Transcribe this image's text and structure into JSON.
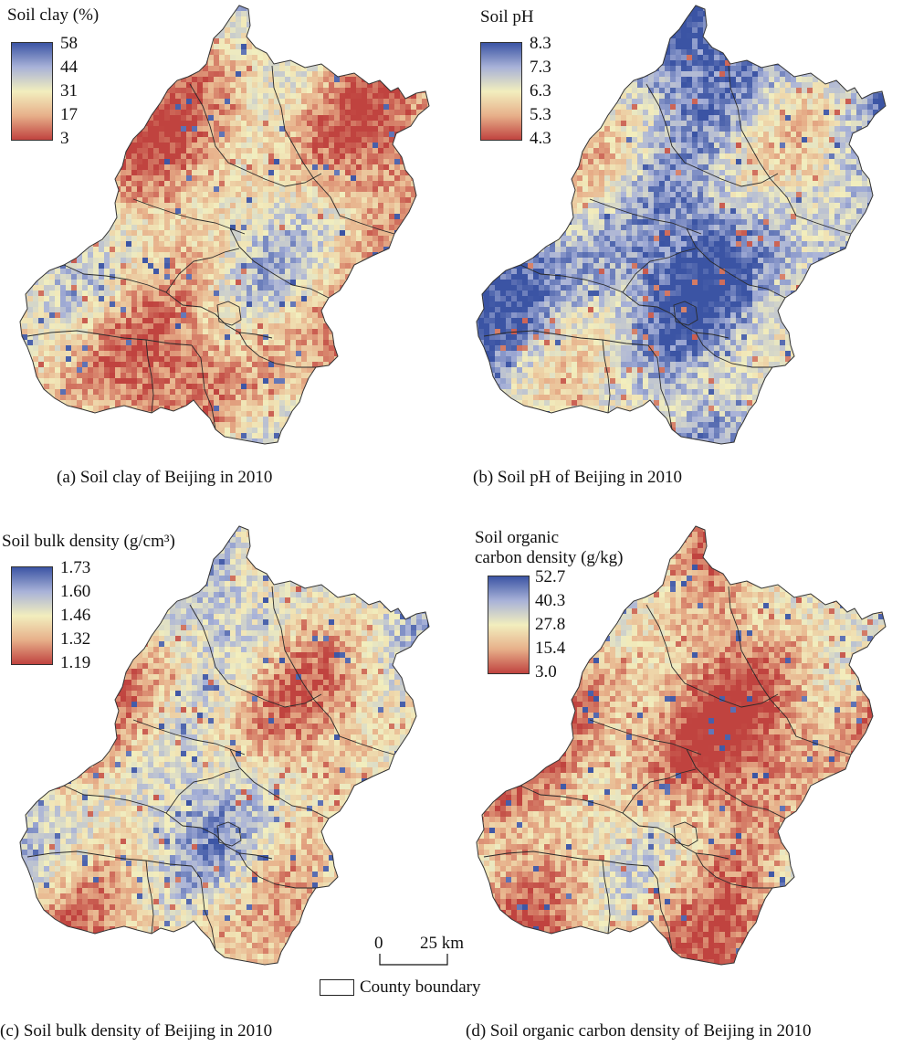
{
  "panels": [
    {
      "id": "a",
      "caption": "(a) Soil clay of Beijing in 2010",
      "legend_title_lines": [
        "Soil clay (%)"
      ],
      "legend_ticks": [
        "58",
        "44",
        "31",
        "17",
        "3"
      ],
      "ramp": [
        "#3b54a4",
        "#a8b2d8",
        "#f2eebe",
        "#e7b08a",
        "#c0433f"
      ],
      "dominant_level": 0.35
    },
    {
      "id": "b",
      "caption": "(b) Soil pH of Beijing in 2010",
      "legend_title_lines": [
        "Soil pH"
      ],
      "legend_ticks": [
        "8.3",
        "7.3",
        "6.3",
        "5.3",
        "4.3"
      ],
      "ramp": [
        "#3b54a4",
        "#a8b2d8",
        "#f2eebe",
        "#e7b08a",
        "#c0433f"
      ],
      "dominant_level": 0.72
    },
    {
      "id": "c",
      "caption": "(c) Soil bulk density of Beijing in 2010",
      "legend_title_lines": [
        "Soil bulk density (g/cm³)"
      ],
      "legend_ticks": [
        "1.73",
        "1.60",
        "1.46",
        "1.32",
        "1.19"
      ],
      "ramp": [
        "#3b54a4",
        "#a8b2d8",
        "#f2eebe",
        "#e7b08a",
        "#c0433f"
      ],
      "dominant_level": 0.45
    },
    {
      "id": "d",
      "caption": "(d) Soil organic carbon density of Beijing in 2010",
      "legend_title_lines": [
        "Soil organic",
        "carbon density (g/kg)"
      ],
      "legend_ticks": [
        "52.7",
        "40.3",
        "27.8",
        "15.4",
        "3.0"
      ],
      "ramp": [
        "#3b54a4",
        "#a8b2d8",
        "#f2eebe",
        "#e7b08a",
        "#c0433f"
      ],
      "dominant_level": 0.25
    }
  ],
  "scale_bar": {
    "zero_label": "0",
    "end_label": "25 km"
  },
  "county_boundary_label": "County boundary"
}
